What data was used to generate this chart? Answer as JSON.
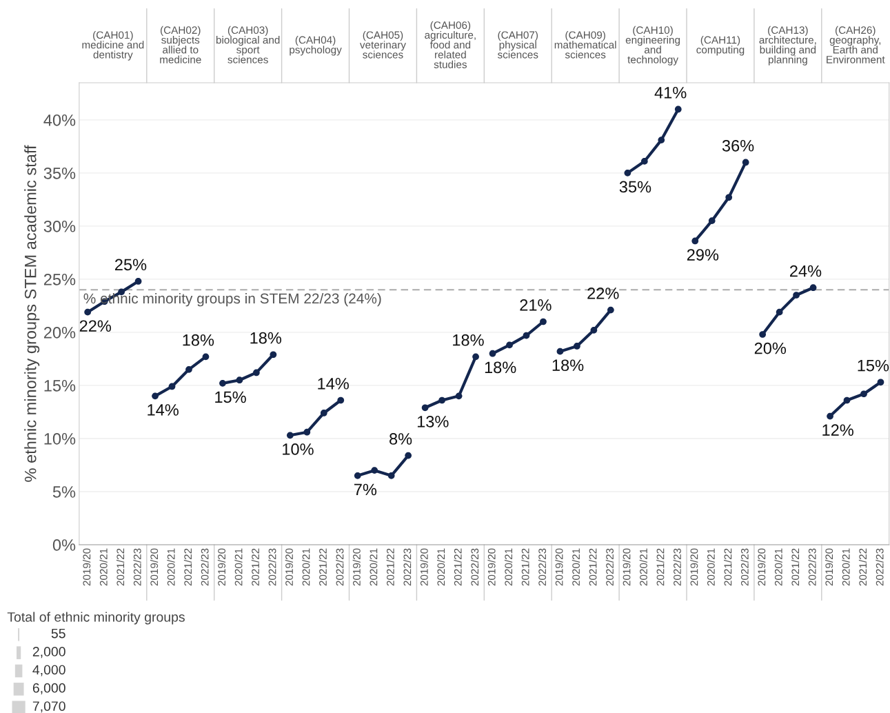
{
  "chart_data": {
    "type": "line",
    "ylabel": "% ethnic minority groups STEM academic staff",
    "legend_title": "Total of ethnic minority groups",
    "categories": [
      "2019/20",
      "2020/21",
      "2021/22",
      "2022/23",
      "2019/20",
      "2020/21",
      "2021/22",
      "2022/23",
      "2019/20",
      "2020/21",
      "2021/22",
      "2022/23",
      "2019/20",
      "2020/21",
      "2021/22",
      "2022/23",
      "2019/20",
      "2020/21",
      "2021/22",
      "2022/23",
      "2019/20",
      "2020/21",
      "2021/22",
      "2022/23",
      "2019/20",
      "2020/21",
      "2021/22",
      "2022/23",
      "2019/20",
      "2020/21",
      "2021/22",
      "2022/23",
      "2019/20",
      "2020/21",
      "2021/22",
      "2022/23",
      "2019/20",
      "2020/21",
      "2021/22",
      "2022/23",
      "2019/20",
      "2020/21",
      "2021/22",
      "2022/23",
      "2019/20",
      "2020/21",
      "2021/22",
      "2022/23"
    ],
    "series": [
      {
        "color": "#13264f",
        "values": [
          21.9,
          22.9,
          23.8,
          24.8,
          null,
          null,
          null,
          null,
          null,
          null,
          null,
          null,
          null,
          null,
          null,
          null,
          null,
          null,
          null,
          null,
          null,
          null,
          null,
          null,
          null,
          null,
          null,
          null,
          null,
          null,
          null,
          null,
          null,
          null,
          null,
          null,
          null,
          null,
          null,
          null,
          null,
          null,
          null,
          null,
          null,
          null,
          null,
          null
        ],
        "value_labels": [
          "22%",
          null,
          null,
          "25%",
          null,
          null,
          null,
          null,
          null,
          null,
          null,
          null,
          null,
          null,
          null,
          null,
          null,
          null,
          null,
          null,
          null,
          null,
          null,
          null,
          null,
          null,
          null,
          null,
          null,
          null,
          null,
          null,
          null,
          null,
          null,
          null,
          null,
          null,
          null,
          null,
          null,
          null,
          null,
          null,
          null,
          null,
          null,
          null
        ]
      },
      {
        "color": "#13264f",
        "values": [
          null,
          null,
          null,
          null,
          14.0,
          14.9,
          16.5,
          17.7,
          null,
          null,
          null,
          null,
          null,
          null,
          null,
          null,
          null,
          null,
          null,
          null,
          null,
          null,
          null,
          null,
          null,
          null,
          null,
          null,
          null,
          null,
          null,
          null,
          null,
          null,
          null,
          null,
          null,
          null,
          null,
          null,
          null,
          null,
          null,
          null,
          null,
          null,
          null,
          null
        ],
        "value_labels": [
          null,
          null,
          null,
          null,
          "14%",
          null,
          null,
          "18%",
          null,
          null,
          null,
          null,
          null,
          null,
          null,
          null,
          null,
          null,
          null,
          null,
          null,
          null,
          null,
          null,
          null,
          null,
          null,
          null,
          null,
          null,
          null,
          null,
          null,
          null,
          null,
          null,
          null,
          null,
          null,
          null,
          null,
          null,
          null,
          null,
          null,
          null,
          null,
          null
        ]
      },
      {
        "color": "#13264f",
        "values": [
          null,
          null,
          null,
          null,
          null,
          null,
          null,
          null,
          15.2,
          15.5,
          16.2,
          17.9,
          null,
          null,
          null,
          null,
          null,
          null,
          null,
          null,
          null,
          null,
          null,
          null,
          null,
          null,
          null,
          null,
          null,
          null,
          null,
          null,
          null,
          null,
          null,
          null,
          null,
          null,
          null,
          null,
          null,
          null,
          null,
          null,
          null,
          null,
          null,
          null
        ],
        "value_labels": [
          null,
          null,
          null,
          null,
          null,
          null,
          null,
          null,
          "15%",
          null,
          null,
          "18%",
          null,
          null,
          null,
          null,
          null,
          null,
          null,
          null,
          null,
          null,
          null,
          null,
          null,
          null,
          null,
          null,
          null,
          null,
          null,
          null,
          null,
          null,
          null,
          null,
          null,
          null,
          null,
          null,
          null,
          null,
          null,
          null,
          null,
          null,
          null,
          null
        ]
      },
      {
        "color": "#13264f",
        "values": [
          null,
          null,
          null,
          null,
          null,
          null,
          null,
          null,
          null,
          null,
          null,
          null,
          10.3,
          10.6,
          12.4,
          13.6,
          null,
          null,
          null,
          null,
          null,
          null,
          null,
          null,
          null,
          null,
          null,
          null,
          null,
          null,
          null,
          null,
          null,
          null,
          null,
          null,
          null,
          null,
          null,
          null,
          null,
          null,
          null,
          null,
          null,
          null,
          null,
          null
        ],
        "value_labels": [
          null,
          null,
          null,
          null,
          null,
          null,
          null,
          null,
          null,
          null,
          null,
          null,
          "10%",
          null,
          null,
          "14%",
          null,
          null,
          null,
          null,
          null,
          null,
          null,
          null,
          null,
          null,
          null,
          null,
          null,
          null,
          null,
          null,
          null,
          null,
          null,
          null,
          null,
          null,
          null,
          null,
          null,
          null,
          null,
          null,
          null,
          null,
          null,
          null
        ]
      },
      {
        "color": "#13264f",
        "values": [
          null,
          null,
          null,
          null,
          null,
          null,
          null,
          null,
          null,
          null,
          null,
          null,
          null,
          null,
          null,
          null,
          6.5,
          7.0,
          6.5,
          8.4,
          null,
          null,
          null,
          null,
          null,
          null,
          null,
          null,
          null,
          null,
          null,
          null,
          null,
          null,
          null,
          null,
          null,
          null,
          null,
          null,
          null,
          null,
          null,
          null,
          null,
          null,
          null,
          null
        ],
        "value_labels": [
          null,
          null,
          null,
          null,
          null,
          null,
          null,
          null,
          null,
          null,
          null,
          null,
          null,
          null,
          null,
          null,
          "7%",
          null,
          null,
          "8%",
          null,
          null,
          null,
          null,
          null,
          null,
          null,
          null,
          null,
          null,
          null,
          null,
          null,
          null,
          null,
          null,
          null,
          null,
          null,
          null,
          null,
          null,
          null,
          null,
          null,
          null,
          null,
          null
        ]
      },
      {
        "color": "#13264f",
        "values": [
          null,
          null,
          null,
          null,
          null,
          null,
          null,
          null,
          null,
          null,
          null,
          null,
          null,
          null,
          null,
          null,
          null,
          null,
          null,
          null,
          12.9,
          13.6,
          14.0,
          17.7,
          null,
          null,
          null,
          null,
          null,
          null,
          null,
          null,
          null,
          null,
          null,
          null,
          null,
          null,
          null,
          null,
          null,
          null,
          null,
          null,
          null,
          null,
          null,
          null
        ],
        "value_labels": [
          null,
          null,
          null,
          null,
          null,
          null,
          null,
          null,
          null,
          null,
          null,
          null,
          null,
          null,
          null,
          null,
          null,
          null,
          null,
          null,
          "13%",
          null,
          null,
          "18%",
          null,
          null,
          null,
          null,
          null,
          null,
          null,
          null,
          null,
          null,
          null,
          null,
          null,
          null,
          null,
          null,
          null,
          null,
          null,
          null,
          null,
          null,
          null,
          null
        ]
      },
      {
        "color": "#13264f",
        "values": [
          null,
          null,
          null,
          null,
          null,
          null,
          null,
          null,
          null,
          null,
          null,
          null,
          null,
          null,
          null,
          null,
          null,
          null,
          null,
          null,
          null,
          null,
          null,
          null,
          18.0,
          18.8,
          19.7,
          21.0,
          null,
          null,
          null,
          null,
          null,
          null,
          null,
          null,
          null,
          null,
          null,
          null,
          null,
          null,
          null,
          null,
          null,
          null,
          null,
          null
        ],
        "value_labels": [
          null,
          null,
          null,
          null,
          null,
          null,
          null,
          null,
          null,
          null,
          null,
          null,
          null,
          null,
          null,
          null,
          null,
          null,
          null,
          null,
          null,
          null,
          null,
          null,
          "18%",
          null,
          null,
          "21%",
          null,
          null,
          null,
          null,
          null,
          null,
          null,
          null,
          null,
          null,
          null,
          null,
          null,
          null,
          null,
          null,
          null,
          null,
          null,
          null
        ]
      },
      {
        "color": "#13264f",
        "values": [
          null,
          null,
          null,
          null,
          null,
          null,
          null,
          null,
          null,
          null,
          null,
          null,
          null,
          null,
          null,
          null,
          null,
          null,
          null,
          null,
          null,
          null,
          null,
          null,
          null,
          null,
          null,
          null,
          18.2,
          18.7,
          20.2,
          22.1,
          null,
          null,
          null,
          null,
          null,
          null,
          null,
          null,
          null,
          null,
          null,
          null,
          null,
          null,
          null,
          null
        ],
        "value_labels": [
          null,
          null,
          null,
          null,
          null,
          null,
          null,
          null,
          null,
          null,
          null,
          null,
          null,
          null,
          null,
          null,
          null,
          null,
          null,
          null,
          null,
          null,
          null,
          null,
          null,
          null,
          null,
          null,
          "18%",
          null,
          null,
          "22%",
          null,
          null,
          null,
          null,
          null,
          null,
          null,
          null,
          null,
          null,
          null,
          null,
          null,
          null,
          null,
          null
        ]
      },
      {
        "color": "#13264f",
        "values": [
          null,
          null,
          null,
          null,
          null,
          null,
          null,
          null,
          null,
          null,
          null,
          null,
          null,
          null,
          null,
          null,
          null,
          null,
          null,
          null,
          null,
          null,
          null,
          null,
          null,
          null,
          null,
          null,
          null,
          null,
          null,
          null,
          35.0,
          36.1,
          38.1,
          41.0,
          null,
          null,
          null,
          null,
          null,
          null,
          null,
          null,
          null,
          null,
          null,
          null
        ],
        "value_labels": [
          null,
          null,
          null,
          null,
          null,
          null,
          null,
          null,
          null,
          null,
          null,
          null,
          null,
          null,
          null,
          null,
          null,
          null,
          null,
          null,
          null,
          null,
          null,
          null,
          null,
          null,
          null,
          null,
          null,
          null,
          null,
          null,
          "35%",
          null,
          null,
          "41%",
          null,
          null,
          null,
          null,
          null,
          null,
          null,
          null,
          null,
          null,
          null,
          null
        ]
      },
      {
        "color": "#13264f",
        "values": [
          null,
          null,
          null,
          null,
          null,
          null,
          null,
          null,
          null,
          null,
          null,
          null,
          null,
          null,
          null,
          null,
          null,
          null,
          null,
          null,
          null,
          null,
          null,
          null,
          null,
          null,
          null,
          null,
          null,
          null,
          null,
          null,
          null,
          null,
          null,
          null,
          28.6,
          30.5,
          32.7,
          36.0,
          null,
          null,
          null,
          null,
          null,
          null,
          null,
          null
        ],
        "value_labels": [
          null,
          null,
          null,
          null,
          null,
          null,
          null,
          null,
          null,
          null,
          null,
          null,
          null,
          null,
          null,
          null,
          null,
          null,
          null,
          null,
          null,
          null,
          null,
          null,
          null,
          null,
          null,
          null,
          null,
          null,
          null,
          null,
          null,
          null,
          null,
          null,
          "29%",
          null,
          null,
          "36%",
          null,
          null,
          null,
          null,
          null,
          null,
          null,
          null
        ]
      },
      {
        "color": "#13264f",
        "values": [
          null,
          null,
          null,
          null,
          null,
          null,
          null,
          null,
          null,
          null,
          null,
          null,
          null,
          null,
          null,
          null,
          null,
          null,
          null,
          null,
          null,
          null,
          null,
          null,
          null,
          null,
          null,
          null,
          null,
          null,
          null,
          null,
          null,
          null,
          null,
          null,
          null,
          null,
          null,
          null,
          19.8,
          21.9,
          23.5,
          24.2,
          null,
          null,
          null,
          null
        ],
        "value_labels": [
          null,
          null,
          null,
          null,
          null,
          null,
          null,
          null,
          null,
          null,
          null,
          null,
          null,
          null,
          null,
          null,
          null,
          null,
          null,
          null,
          null,
          null,
          null,
          null,
          null,
          null,
          null,
          null,
          null,
          null,
          null,
          null,
          null,
          null,
          null,
          null,
          null,
          null,
          null,
          null,
          "20%",
          null,
          null,
          "24%",
          null,
          null,
          null,
          null
        ]
      },
      {
        "color": "#13264f",
        "values": [
          null,
          null,
          null,
          null,
          null,
          null,
          null,
          null,
          null,
          null,
          null,
          null,
          null,
          null,
          null,
          null,
          null,
          null,
          null,
          null,
          null,
          null,
          null,
          null,
          null,
          null,
          null,
          null,
          null,
          null,
          null,
          null,
          null,
          null,
          null,
          null,
          null,
          null,
          null,
          null,
          null,
          null,
          null,
          null,
          12.1,
          13.6,
          14.2,
          15.3
        ],
        "value_labels": [
          null,
          null,
          null,
          null,
          null,
          null,
          null,
          null,
          null,
          null,
          null,
          null,
          null,
          null,
          null,
          null,
          null,
          null,
          null,
          null,
          null,
          null,
          null,
          null,
          null,
          null,
          null,
          null,
          null,
          null,
          null,
          null,
          null,
          null,
          null,
          null,
          null,
          null,
          null,
          null,
          null,
          null,
          null,
          null,
          "12%",
          null,
          null,
          "15%"
        ]
      }
    ],
    "ylim": [
      0,
      43.5
    ],
    "yticks": [
      {
        "value": 0,
        "label": "0%"
      },
      {
        "value": 5,
        "label": "5%"
      },
      {
        "value": 10,
        "label": "10%"
      },
      {
        "value": 15,
        "label": "15%"
      },
      {
        "value": 20,
        "label": "20%"
      },
      {
        "value": 25,
        "label": "25%"
      },
      {
        "value": 30,
        "label": "30%"
      },
      {
        "value": 35,
        "label": "35%"
      },
      {
        "value": 40,
        "label": "40%"
      }
    ],
    "grid": "y",
    "marker": "circle",
    "ref_lines": [
      {
        "axis": "y",
        "value": 24,
        "label": "% ethnic minority groups in STEM 22/23 (24%)",
        "color": "#aaaaaa",
        "line_style": "dashed"
      }
    ],
    "annotations": [
      "(CAH01)\nmedicine and\ndentistry",
      "(CAH02)\nsubjects\nallied to\nmedicine",
      "(CAH03)\nbiological and\nsport\nsciences",
      "(CAH04)\npsychology",
      "(CAH05)\nveterinary\nsciences",
      "(CAH06)\nagriculture,\nfood and\nrelated\nstudies",
      "(CAH07)\nphysical\nsciences",
      "(CAH09)\nmathematical\nsciences",
      "(CAH10)\nengineering\nand\ntechnology",
      "(CAH11)\ncomputing",
      "(CAH13)\narchitecture,\nbuilding and\nplanning",
      "(CAH26)\ngeography,\nEarth and\nEnvironment",
      "55",
      "2,000",
      "4,000",
      "6,000",
      "7,070"
    ]
  }
}
